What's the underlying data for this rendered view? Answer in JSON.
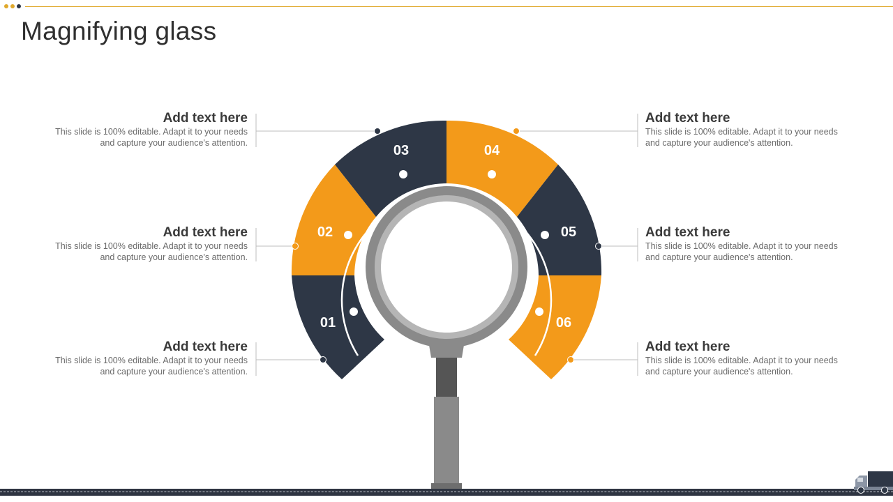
{
  "slide": {
    "title": "Magnifying glass"
  },
  "colors": {
    "accent": "#f39a1a",
    "dark": "#2e3746",
    "lens_gray": "#8c8c8c",
    "handle_gray": "#555555"
  },
  "segments": [
    {
      "number": "01",
      "heading": "Add text here",
      "text": "This slide is 100% editable. Adapt it to your needs and capture your audience's attention."
    },
    {
      "number": "02",
      "heading": "Add text here",
      "text": "This slide is 100% editable. Adapt it to your needs and capture your audience's attention."
    },
    {
      "number": "03",
      "heading": "Add text here",
      "text": "This slide is 100% editable. Adapt it to your needs and capture your audience's attention."
    },
    {
      "number": "04",
      "heading": "Add text here",
      "text": "This slide is 100% editable. Adapt it to your needs and capture your audience's attention."
    },
    {
      "number": "05",
      "heading": "Add text here",
      "text": "This slide is 100% editable. Adapt it to your needs and capture your audience's attention."
    },
    {
      "number": "06",
      "heading": "Add text here",
      "text": "This slide is 100% editable. Adapt it to your needs and capture your audience's attention."
    }
  ],
  "decor": {
    "truck_icon": "delivery-truck-icon",
    "road": "road-strip"
  }
}
